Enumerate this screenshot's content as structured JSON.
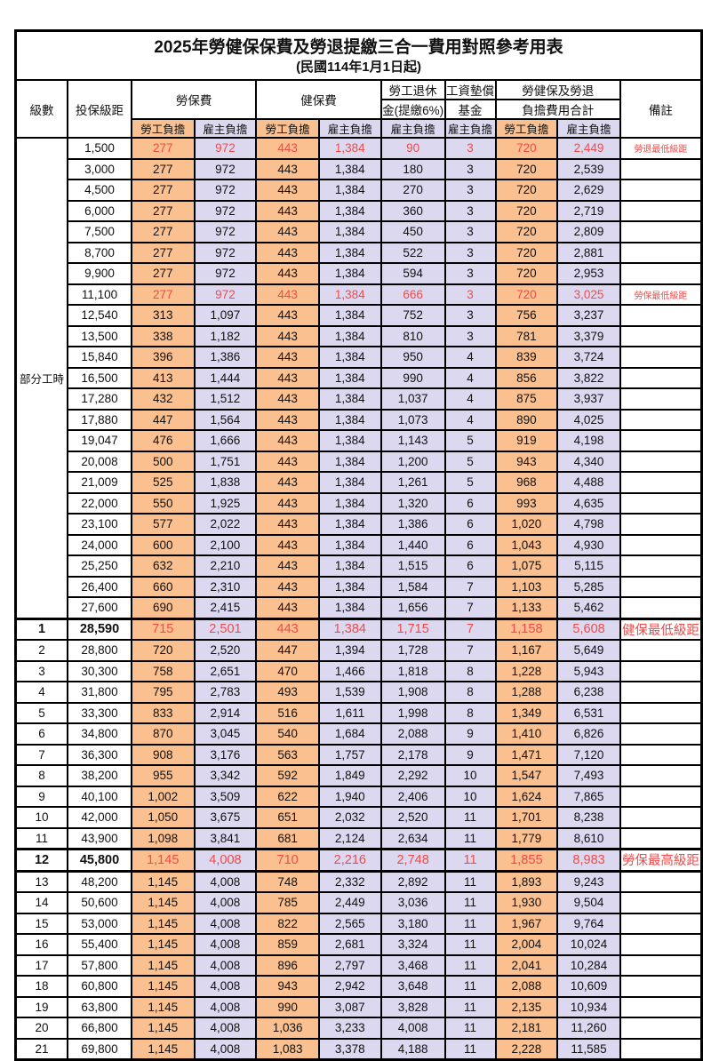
{
  "title": "2025年勞健保保費及勞退提繳三合一費用對照參考用表",
  "subtitle": "(民國114年1月1日起)",
  "colors": {
    "employee_bg": "#FAC08F",
    "employer_bg": "#DCD8F0",
    "red": "#F04B4B"
  },
  "header": {
    "level": "級數",
    "bracket": "投保級距",
    "labor_insurance": "勞保費",
    "health_insurance": "健保費",
    "pension_line1": "勞工退休",
    "pension_line2": "金(提繳6%)",
    "wage_fund_line1": "工資墊償",
    "wage_fund_line2": "基金",
    "total_line1": "勞健保及勞退",
    "total_line2": "負擔費用合計",
    "remark": "備註",
    "employee": "勞工負擔",
    "employer": "雇主負擔"
  },
  "group_label": "部分工時",
  "group_rowspan": 23,
  "rows": [
    {
      "lv": "",
      "br": "1,500",
      "a": "277",
      "b": "972",
      "c": "443",
      "d": "1,384",
      "e": "90",
      "f": "3",
      "g": "720",
      "h": "2,449",
      "rm": "勞退最低級距",
      "red": true,
      "bold": false,
      "tt": false,
      "tb": false
    },
    {
      "lv": "",
      "br": "3,000",
      "a": "277",
      "b": "972",
      "c": "443",
      "d": "1,384",
      "e": "180",
      "f": "3",
      "g": "720",
      "h": "2,539",
      "rm": "",
      "red": false,
      "bold": false,
      "tt": false,
      "tb": false
    },
    {
      "lv": "",
      "br": "4,500",
      "a": "277",
      "b": "972",
      "c": "443",
      "d": "1,384",
      "e": "270",
      "f": "3",
      "g": "720",
      "h": "2,629",
      "rm": "",
      "red": false,
      "bold": false,
      "tt": false,
      "tb": false
    },
    {
      "lv": "",
      "br": "6,000",
      "a": "277",
      "b": "972",
      "c": "443",
      "d": "1,384",
      "e": "360",
      "f": "3",
      "g": "720",
      "h": "2,719",
      "rm": "",
      "red": false,
      "bold": false,
      "tt": false,
      "tb": false
    },
    {
      "lv": "",
      "br": "7,500",
      "a": "277",
      "b": "972",
      "c": "443",
      "d": "1,384",
      "e": "450",
      "f": "3",
      "g": "720",
      "h": "2,809",
      "rm": "",
      "red": false,
      "bold": false,
      "tt": false,
      "tb": false
    },
    {
      "lv": "",
      "br": "8,700",
      "a": "277",
      "b": "972",
      "c": "443",
      "d": "1,384",
      "e": "522",
      "f": "3",
      "g": "720",
      "h": "2,881",
      "rm": "",
      "red": false,
      "bold": false,
      "tt": false,
      "tb": false
    },
    {
      "lv": "",
      "br": "9,900",
      "a": "277",
      "b": "972",
      "c": "443",
      "d": "1,384",
      "e": "594",
      "f": "3",
      "g": "720",
      "h": "2,953",
      "rm": "",
      "red": false,
      "bold": false,
      "tt": false,
      "tb": false
    },
    {
      "lv": "",
      "br": "11,100",
      "a": "277",
      "b": "972",
      "c": "443",
      "d": "1,384",
      "e": "666",
      "f": "3",
      "g": "720",
      "h": "3,025",
      "rm": "勞保最低級距",
      "red": true,
      "bold": false,
      "tt": false,
      "tb": false
    },
    {
      "lv": "",
      "br": "12,540",
      "a": "313",
      "b": "1,097",
      "c": "443",
      "d": "1,384",
      "e": "752",
      "f": "3",
      "g": "756",
      "h": "3,237",
      "rm": "",
      "red": false,
      "bold": false,
      "tt": false,
      "tb": false
    },
    {
      "lv": "",
      "br": "13,500",
      "a": "338",
      "b": "1,182",
      "c": "443",
      "d": "1,384",
      "e": "810",
      "f": "3",
      "g": "781",
      "h": "3,379",
      "rm": "",
      "red": false,
      "bold": false,
      "tt": false,
      "tb": false
    },
    {
      "lv": "",
      "br": "15,840",
      "a": "396",
      "b": "1,386",
      "c": "443",
      "d": "1,384",
      "e": "950",
      "f": "4",
      "g": "839",
      "h": "3,724",
      "rm": "",
      "red": false,
      "bold": false,
      "tt": false,
      "tb": false
    },
    {
      "lv": "",
      "br": "16,500",
      "a": "413",
      "b": "1,444",
      "c": "443",
      "d": "1,384",
      "e": "990",
      "f": "4",
      "g": "856",
      "h": "3,822",
      "rm": "",
      "red": false,
      "bold": false,
      "tt": false,
      "tb": false
    },
    {
      "lv": "",
      "br": "17,280",
      "a": "432",
      "b": "1,512",
      "c": "443",
      "d": "1,384",
      "e": "1,037",
      "f": "4",
      "g": "875",
      "h": "3,937",
      "rm": "",
      "red": false,
      "bold": false,
      "tt": false,
      "tb": false
    },
    {
      "lv": "",
      "br": "17,880",
      "a": "447",
      "b": "1,564",
      "c": "443",
      "d": "1,384",
      "e": "1,073",
      "f": "4",
      "g": "890",
      "h": "4,025",
      "rm": "",
      "red": false,
      "bold": false,
      "tt": false,
      "tb": false
    },
    {
      "lv": "",
      "br": "19,047",
      "a": "476",
      "b": "1,666",
      "c": "443",
      "d": "1,384",
      "e": "1,143",
      "f": "5",
      "g": "919",
      "h": "4,198",
      "rm": "",
      "red": false,
      "bold": false,
      "tt": false,
      "tb": false
    },
    {
      "lv": "",
      "br": "20,008",
      "a": "500",
      "b": "1,751",
      "c": "443",
      "d": "1,384",
      "e": "1,200",
      "f": "5",
      "g": "943",
      "h": "4,340",
      "rm": "",
      "red": false,
      "bold": false,
      "tt": false,
      "tb": false
    },
    {
      "lv": "",
      "br": "21,009",
      "a": "525",
      "b": "1,838",
      "c": "443",
      "d": "1,384",
      "e": "1,261",
      "f": "5",
      "g": "968",
      "h": "4,488",
      "rm": "",
      "red": false,
      "bold": false,
      "tt": false,
      "tb": false
    },
    {
      "lv": "",
      "br": "22,000",
      "a": "550",
      "b": "1,925",
      "c": "443",
      "d": "1,384",
      "e": "1,320",
      "f": "6",
      "g": "993",
      "h": "4,635",
      "rm": "",
      "red": false,
      "bold": false,
      "tt": false,
      "tb": false
    },
    {
      "lv": "",
      "br": "23,100",
      "a": "577",
      "b": "2,022",
      "c": "443",
      "d": "1,384",
      "e": "1,386",
      "f": "6",
      "g": "1,020",
      "h": "4,798",
      "rm": "",
      "red": false,
      "bold": false,
      "tt": false,
      "tb": false
    },
    {
      "lv": "",
      "br": "24,000",
      "a": "600",
      "b": "2,100",
      "c": "443",
      "d": "1,384",
      "e": "1,440",
      "f": "6",
      "g": "1,043",
      "h": "4,930",
      "rm": "",
      "red": false,
      "bold": false,
      "tt": false,
      "tb": false
    },
    {
      "lv": "",
      "br": "25,250",
      "a": "632",
      "b": "2,210",
      "c": "443",
      "d": "1,384",
      "e": "1,515",
      "f": "6",
      "g": "1,075",
      "h": "5,115",
      "rm": "",
      "red": false,
      "bold": false,
      "tt": false,
      "tb": false
    },
    {
      "lv": "",
      "br": "26,400",
      "a": "660",
      "b": "2,310",
      "c": "443",
      "d": "1,384",
      "e": "1,584",
      "f": "7",
      "g": "1,103",
      "h": "5,285",
      "rm": "",
      "red": false,
      "bold": false,
      "tt": false,
      "tb": false
    },
    {
      "lv": "",
      "br": "27,600",
      "a": "690",
      "b": "2,415",
      "c": "443",
      "d": "1,384",
      "e": "1,656",
      "f": "7",
      "g": "1,133",
      "h": "5,462",
      "rm": "",
      "red": false,
      "bold": false,
      "tt": false,
      "tb": false
    },
    {
      "lv": "1",
      "br": "28,590",
      "a": "715",
      "b": "2,501",
      "c": "443",
      "d": "1,384",
      "e": "1,715",
      "f": "7",
      "g": "1,158",
      "h": "5,608",
      "rm": "健保最低級距",
      "red": true,
      "bold": true,
      "tt": true,
      "tb": false
    },
    {
      "lv": "2",
      "br": "28,800",
      "a": "720",
      "b": "2,520",
      "c": "447",
      "d": "1,394",
      "e": "1,728",
      "f": "7",
      "g": "1,167",
      "h": "5,649",
      "rm": "",
      "red": false,
      "bold": false,
      "tt": false,
      "tb": false
    },
    {
      "lv": "3",
      "br": "30,300",
      "a": "758",
      "b": "2,651",
      "c": "470",
      "d": "1,466",
      "e": "1,818",
      "f": "8",
      "g": "1,228",
      "h": "5,943",
      "rm": "",
      "red": false,
      "bold": false,
      "tt": false,
      "tb": false
    },
    {
      "lv": "4",
      "br": "31,800",
      "a": "795",
      "b": "2,783",
      "c": "493",
      "d": "1,539",
      "e": "1,908",
      "f": "8",
      "g": "1,288",
      "h": "6,238",
      "rm": "",
      "red": false,
      "bold": false,
      "tt": false,
      "tb": false
    },
    {
      "lv": "5",
      "br": "33,300",
      "a": "833",
      "b": "2,914",
      "c": "516",
      "d": "1,611",
      "e": "1,998",
      "f": "8",
      "g": "1,349",
      "h": "6,531",
      "rm": "",
      "red": false,
      "bold": false,
      "tt": false,
      "tb": false
    },
    {
      "lv": "6",
      "br": "34,800",
      "a": "870",
      "b": "3,045",
      "c": "540",
      "d": "1,684",
      "e": "2,088",
      "f": "9",
      "g": "1,410",
      "h": "6,826",
      "rm": "",
      "red": false,
      "bold": false,
      "tt": false,
      "tb": false
    },
    {
      "lv": "7",
      "br": "36,300",
      "a": "908",
      "b": "3,176",
      "c": "563",
      "d": "1,757",
      "e": "2,178",
      "f": "9",
      "g": "1,471",
      "h": "7,120",
      "rm": "",
      "red": false,
      "bold": false,
      "tt": false,
      "tb": false
    },
    {
      "lv": "8",
      "br": "38,200",
      "a": "955",
      "b": "3,342",
      "c": "592",
      "d": "1,849",
      "e": "2,292",
      "f": "10",
      "g": "1,547",
      "h": "7,493",
      "rm": "",
      "red": false,
      "bold": false,
      "tt": false,
      "tb": false
    },
    {
      "lv": "9",
      "br": "40,100",
      "a": "1,002",
      "b": "3,509",
      "c": "622",
      "d": "1,940",
      "e": "2,406",
      "f": "10",
      "g": "1,624",
      "h": "7,865",
      "rm": "",
      "red": false,
      "bold": false,
      "tt": false,
      "tb": false
    },
    {
      "lv": "10",
      "br": "42,000",
      "a": "1,050",
      "b": "3,675",
      "c": "651",
      "d": "2,032",
      "e": "2,520",
      "f": "11",
      "g": "1,701",
      "h": "8,238",
      "rm": "",
      "red": false,
      "bold": false,
      "tt": false,
      "tb": false
    },
    {
      "lv": "11",
      "br": "43,900",
      "a": "1,098",
      "b": "3,841",
      "c": "681",
      "d": "2,124",
      "e": "2,634",
      "f": "11",
      "g": "1,779",
      "h": "8,610",
      "rm": "",
      "red": false,
      "bold": false,
      "tt": false,
      "tb": false
    },
    {
      "lv": "12",
      "br": "45,800",
      "a": "1,145",
      "b": "4,008",
      "c": "710",
      "d": "2,216",
      "e": "2,748",
      "f": "11",
      "g": "1,855",
      "h": "8,983",
      "rm": "勞保最高級距",
      "red": true,
      "bold": true,
      "tt": true,
      "tb": true
    },
    {
      "lv": "13",
      "br": "48,200",
      "a": "1,145",
      "b": "4,008",
      "c": "748",
      "d": "2,332",
      "e": "2,892",
      "f": "11",
      "g": "1,893",
      "h": "9,243",
      "rm": "",
      "red": false,
      "bold": false,
      "tt": false,
      "tb": false
    },
    {
      "lv": "14",
      "br": "50,600",
      "a": "1,145",
      "b": "4,008",
      "c": "785",
      "d": "2,449",
      "e": "3,036",
      "f": "11",
      "g": "1,930",
      "h": "9,504",
      "rm": "",
      "red": false,
      "bold": false,
      "tt": false,
      "tb": false
    },
    {
      "lv": "15",
      "br": "53,000",
      "a": "1,145",
      "b": "4,008",
      "c": "822",
      "d": "2,565",
      "e": "3,180",
      "f": "11",
      "g": "1,967",
      "h": "9,764",
      "rm": "",
      "red": false,
      "bold": false,
      "tt": false,
      "tb": false
    },
    {
      "lv": "16",
      "br": "55,400",
      "a": "1,145",
      "b": "4,008",
      "c": "859",
      "d": "2,681",
      "e": "3,324",
      "f": "11",
      "g": "2,004",
      "h": "10,024",
      "rm": "",
      "red": false,
      "bold": false,
      "tt": false,
      "tb": false
    },
    {
      "lv": "17",
      "br": "57,800",
      "a": "1,145",
      "b": "4,008",
      "c": "896",
      "d": "2,797",
      "e": "3,468",
      "f": "11",
      "g": "2,041",
      "h": "10,284",
      "rm": "",
      "red": false,
      "bold": false,
      "tt": false,
      "tb": false
    },
    {
      "lv": "18",
      "br": "60,800",
      "a": "1,145",
      "b": "4,008",
      "c": "943",
      "d": "2,942",
      "e": "3,648",
      "f": "11",
      "g": "2,088",
      "h": "10,609",
      "rm": "",
      "red": false,
      "bold": false,
      "tt": false,
      "tb": false
    },
    {
      "lv": "19",
      "br": "63,800",
      "a": "1,145",
      "b": "4,008",
      "c": "990",
      "d": "3,087",
      "e": "3,828",
      "f": "11",
      "g": "2,135",
      "h": "10,934",
      "rm": "",
      "red": false,
      "bold": false,
      "tt": false,
      "tb": false
    },
    {
      "lv": "20",
      "br": "66,800",
      "a": "1,145",
      "b": "4,008",
      "c": "1,036",
      "d": "3,233",
      "e": "4,008",
      "f": "11",
      "g": "2,181",
      "h": "11,260",
      "rm": "",
      "red": false,
      "bold": false,
      "tt": false,
      "tb": false
    },
    {
      "lv": "21",
      "br": "69,800",
      "a": "1,145",
      "b": "4,008",
      "c": "1,083",
      "d": "3,378",
      "e": "4,188",
      "f": "11",
      "g": "2,228",
      "h": "11,585",
      "rm": "",
      "red": false,
      "bold": false,
      "tt": false,
      "tb": false
    }
  ]
}
